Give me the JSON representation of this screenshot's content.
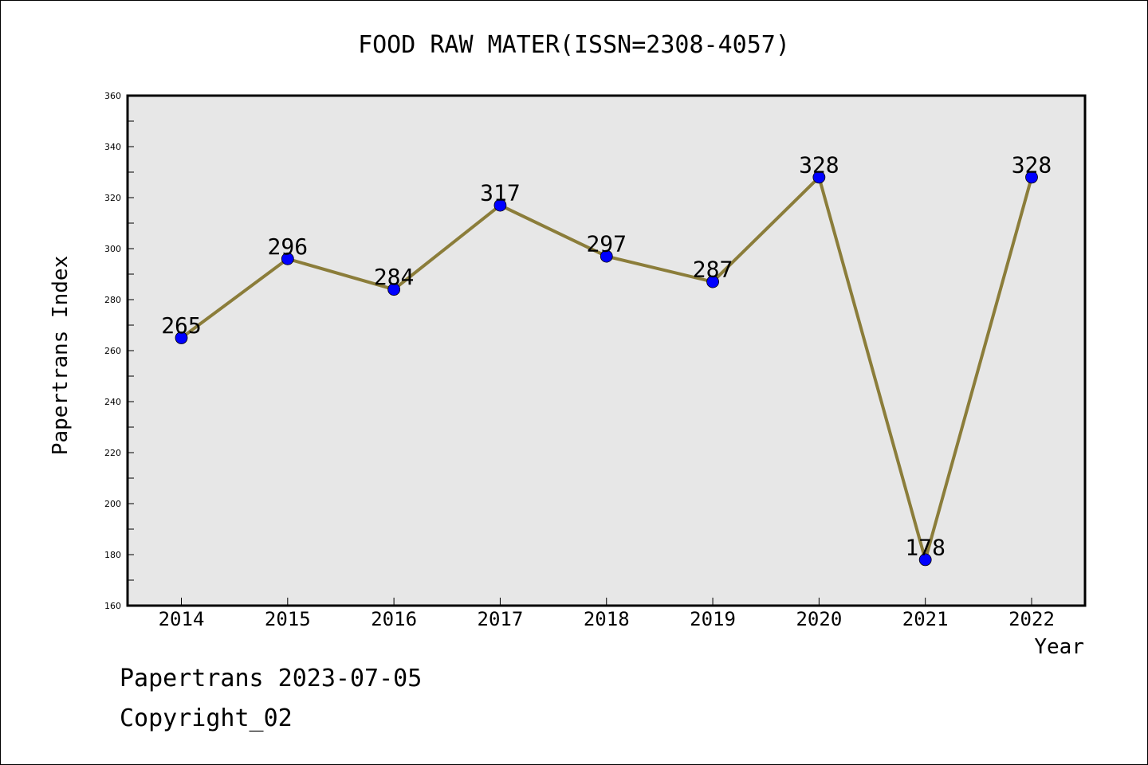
{
  "chart_data": {
    "type": "line",
    "title": "FOOD RAW MATER(ISSN=2308-4057)",
    "xlabel": "Year",
    "ylabel": "Papertrans Index",
    "categories": [
      "2014",
      "2015",
      "2016",
      "2017",
      "2018",
      "2019",
      "2020",
      "2021",
      "2022"
    ],
    "series": [
      {
        "values": [
          265,
          296,
          284,
          317,
          297,
          287,
          328,
          178,
          328
        ]
      }
    ],
    "data_labels": [
      "265",
      "296",
      "284",
      "317",
      "297",
      "287",
      "328",
      "178",
      "328"
    ],
    "ylim": [
      160,
      360
    ],
    "y_ticks": [
      "160",
      "180",
      "200",
      "220",
      "240",
      "260",
      "280",
      "300",
      "320",
      "340",
      "360"
    ],
    "grid": false,
    "legend": "none",
    "colors": {
      "line": "#8B7D3A",
      "marker": "#0000FF",
      "plot_background": "#E7E7E7"
    }
  },
  "footer": {
    "line1": "Papertrans 2023-07-05",
    "line2": "Copyright_02"
  }
}
